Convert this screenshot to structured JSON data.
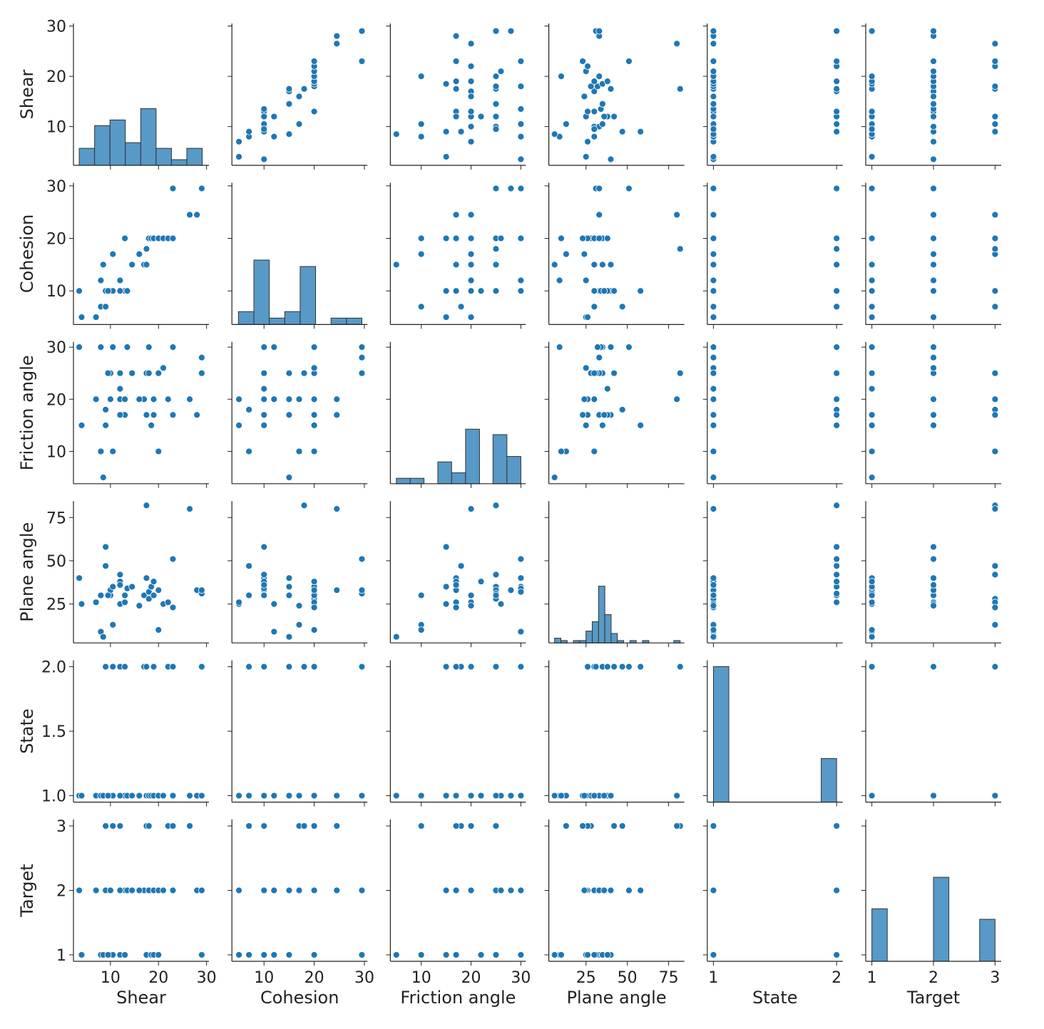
{
  "chart_data": {
    "type": "pairplot",
    "color": "#1f77b4",
    "hist_color": "#5799c7",
    "variables": [
      {
        "name": "Shear",
        "lim": [
          2.3,
          30.5
        ],
        "xticks": [
          10,
          20,
          30
        ],
        "yticks": [
          10,
          20,
          30
        ]
      },
      {
        "name": "Cohesion",
        "lim": [
          3.6,
          30.6
        ],
        "xticks": [
          10,
          20,
          30
        ],
        "yticks": [
          10,
          20,
          30
        ]
      },
      {
        "name": "Friction angle",
        "lim": [
          3.8,
          31
        ],
        "xticks": [
          10,
          20,
          30
        ],
        "yticks": [
          10,
          20,
          30
        ]
      },
      {
        "name": "Plane angle",
        "lim": [
          2.5,
          84.5
        ],
        "xticks": [
          25,
          50,
          75
        ],
        "yticks": [
          25,
          50,
          75
        ]
      },
      {
        "name": "State",
        "lim": [
          0.95,
          2.05
        ],
        "xticks": [
          1,
          2
        ],
        "yticks": [
          {
            "value": 1,
            "label": "1.0"
          },
          {
            "value": 1.5,
            "label": "1.5"
          },
          {
            "value": 2,
            "label": "2.0"
          }
        ]
      },
      {
        "name": "Target",
        "lim": [
          0.9,
          3.1
        ],
        "xticks": [
          1,
          2,
          3
        ],
        "yticks": [
          1,
          2,
          3
        ]
      }
    ],
    "rows": [
      [
        3.5,
        10,
        30,
        40,
        1,
        2
      ],
      [
        4,
        5,
        15,
        25,
        1,
        1
      ],
      [
        7,
        5,
        20,
        26,
        1,
        2
      ],
      [
        8,
        7,
        10,
        30,
        1,
        1
      ],
      [
        8,
        12,
        30,
        9,
        1,
        1
      ],
      [
        8.5,
        15,
        5,
        6,
        1,
        1
      ],
      [
        9,
        7,
        18,
        47,
        2,
        3
      ],
      [
        9,
        10,
        15,
        58,
        2,
        2
      ],
      [
        10,
        10,
        20,
        30,
        1,
        2
      ],
      [
        10,
        10,
        25,
        33,
        1,
        1
      ],
      [
        10.5,
        10,
        30,
        35,
        2,
        1
      ],
      [
        10.5,
        17,
        10,
        13,
        1,
        3
      ],
      [
        12,
        12,
        20,
        25,
        1,
        2
      ],
      [
        12,
        10,
        22,
        38,
        1,
        1
      ],
      [
        12,
        10,
        25,
        42,
        2,
        3
      ],
      [
        13,
        10,
        20,
        30,
        2,
        2
      ],
      [
        13,
        20,
        17,
        26,
        1,
        1
      ],
      [
        13.5,
        10,
        30,
        34,
        1,
        2
      ],
      [
        14.5,
        15,
        25,
        35,
        1,
        2
      ],
      [
        17,
        15,
        20,
        30,
        2,
        2
      ],
      [
        17.5,
        18,
        25,
        82,
        2,
        3
      ],
      [
        17.5,
        15,
        17,
        40,
        1,
        1
      ],
      [
        18,
        20,
        30,
        32,
        1,
        2
      ],
      [
        18,
        20,
        25,
        28,
        1,
        3
      ],
      [
        18.5,
        20,
        15,
        35,
        1,
        1
      ],
      [
        19,
        20,
        20,
        30,
        1,
        2
      ],
      [
        19,
        20,
        17,
        38,
        2,
        1
      ],
      [
        20,
        20,
        25,
        33,
        1,
        2
      ],
      [
        20,
        20,
        10,
        10,
        1,
        1
      ],
      [
        21,
        20,
        26,
        25,
        1,
        2
      ],
      [
        22,
        20,
        20,
        26,
        2,
        3
      ],
      [
        23,
        20,
        17,
        23,
        1,
        3
      ],
      [
        23,
        29.5,
        30,
        51,
        2,
        2
      ],
      [
        26.5,
        24.5,
        20,
        80,
        1,
        3
      ],
      [
        28,
        24.5,
        17,
        33,
        1,
        2
      ],
      [
        29,
        29.5,
        25,
        31,
        2,
        1
      ],
      [
        29,
        29.5,
        28,
        33,
        1,
        2
      ],
      [
        16,
        17,
        20,
        24,
        1,
        2
      ],
      [
        9.5,
        10,
        25,
        30,
        1,
        1
      ],
      [
        12,
        10,
        17,
        36,
        1,
        2
      ]
    ],
    "histograms": [
      {
        "bins": [
          3.5,
          6.7,
          9.9,
          13.1,
          16.3,
          19.5,
          22.7,
          25.9,
          29.1
        ],
        "counts": [
          3,
          7,
          8,
          4,
          10,
          3,
          1,
          3
        ],
        "ylim": [
          0,
          25
        ]
      },
      {
        "bins": [
          4.9,
          7.98,
          11.05,
          14.13,
          17.2,
          20.28,
          23.35,
          26.43,
          29.5
        ],
        "counts": [
          2,
          10,
          1,
          2,
          9,
          0,
          1,
          1
        ],
        "ylim": [
          0,
          22
        ]
      },
      {
        "bins": [
          5,
          7.78,
          10.56,
          13.33,
          16.1,
          18.9,
          21.7,
          24.4,
          27.2,
          30
        ],
        "counts": [
          1,
          1,
          0,
          4,
          2,
          10,
          0,
          9,
          5
        ],
        "ylim": [
          0,
          26
        ]
      },
      {
        "bins": [
          6,
          9.8,
          13.6,
          17.4,
          21.2,
          25,
          28.8,
          32.6,
          36.4,
          40.2,
          44,
          47.8,
          51.6,
          55.4,
          59.2,
          63,
          66.8,
          70.6,
          74.4,
          78.2,
          82
        ],
        "counts": [
          2,
          1,
          0,
          1,
          1,
          5,
          9,
          24,
          12,
          4,
          1,
          0,
          1,
          0,
          1,
          0,
          0,
          0,
          0,
          1
        ],
        "ylim": [
          0,
          60
        ]
      },
      {
        "bins": [
          1,
          1.125,
          1.25,
          1.375,
          1.5,
          1.625,
          1.75,
          1.875,
          2
        ],
        "counts": [
          28,
          0,
          0,
          0,
          0,
          0,
          0,
          9
        ],
        "ylim": [
          0,
          29.3
        ]
      },
      {
        "bins": [
          1,
          1.25,
          1.5,
          1.75,
          2,
          2.25,
          2.5,
          2.75,
          3
        ],
        "counts": [
          10,
          0,
          0,
          0,
          16,
          0,
          0,
          8
        ],
        "ylim": [
          0,
          27
        ]
      }
    ]
  }
}
